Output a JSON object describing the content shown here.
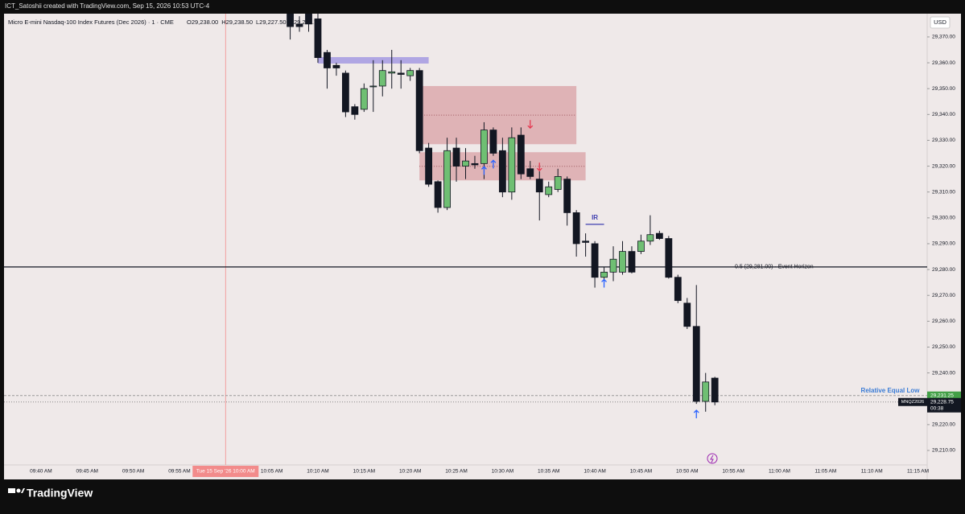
{
  "credit": "ICT_Satoshii created with TradingView.com, Sep 15, 2026 10:53 UTC-4",
  "brand": "TradingView",
  "chart_data": {
    "type": "candlestick",
    "title": "Micro E-mini Nasdaq-100 Index Futures (Dec 2026) · 1 · CME",
    "ohlc_labels": [
      "O29,238.00",
      "H29,238.50",
      "L29,227.50",
      "C29,228.75"
    ],
    "currency": "USD",
    "x": [
      "10:07 AM",
      "10:08 AM",
      "10:09 AM",
      "10:10 AM",
      "10:11 AM",
      "10:12 AM",
      "10:13 AM",
      "10:14 AM",
      "10:15 AM",
      "10:16 AM",
      "10:17 AM",
      "10:18 AM",
      "10:19 AM",
      "10:20 AM",
      "10:21 AM",
      "10:22 AM",
      "10:23 AM",
      "10:24 AM",
      "10:25 AM",
      "10:26 AM",
      "10:27 AM",
      "10:28 AM",
      "10:29 AM",
      "10:30 AM",
      "10:31 AM",
      "10:32 AM",
      "10:33 AM",
      "10:34 AM",
      "10:35 AM",
      "10:36 AM",
      "10:37 AM",
      "10:38 AM",
      "10:39 AM",
      "10:40 AM",
      "10:41 AM",
      "10:42 AM",
      "10:43 AM",
      "10:44 AM",
      "10:45 AM",
      "10:46 AM",
      "10:47 AM",
      "10:48 AM",
      "10:49 AM",
      "10:50 AM",
      "10:51 AM",
      "10:52 AM",
      "10:53 AM"
    ],
    "open": [
      29379,
      29375,
      29380,
      29377,
      29364,
      29359,
      29356,
      29343,
      29342,
      29351,
      29351,
      29356,
      29356,
      29355,
      29357,
      29327,
      29314,
      29304,
      29327,
      29320,
      29321,
      29321,
      29334,
      29326,
      29310,
      29332,
      29319,
      29315,
      29309,
      29311,
      29315,
      29302,
      29291,
      29290,
      29277,
      29279,
      29279,
      29287,
      29287,
      29291,
      29294,
      29292,
      29277,
      29267,
      29258,
      29229,
      29238
    ],
    "high": [
      29380,
      29378,
      29381,
      29379,
      29365,
      29360,
      29357,
      29344,
      29352,
      29361,
      29361,
      29365,
      29361,
      29358,
      29358,
      29329,
      29314.5,
      29331,
      29331,
      29327,
      29324,
      29337,
      29335,
      29331,
      29335,
      29335,
      29322,
      29318,
      29314,
      29319,
      29316,
      29303,
      29294,
      29291,
      29281,
      29289,
      29291,
      29289,
      29293.5,
      29301,
      29295,
      29293,
      29278,
      29269,
      29274,
      29240,
      29238.5
    ],
    "low": [
      29369,
      29372,
      29372,
      29360,
      29350,
      29355,
      29339,
      29338,
      29341,
      29341,
      29347,
      29350,
      29350,
      29353,
      29325,
      29312,
      29302,
      29303,
      29314,
      29315,
      29319,
      29315,
      29324,
      29308,
      29307,
      29315,
      29315,
      29299,
      29308,
      29310,
      29297,
      29285,
      29285,
      29273,
      29275.5,
      29275.5,
      29278,
      29278.5,
      29286,
      29289.5,
      29291.5,
      29276.5,
      29267,
      29257,
      29228,
      29225,
      29227.5
    ],
    "close": [
      29374,
      29374,
      29375,
      29362,
      29358,
      29358,
      29341,
      29340,
      29350,
      29351,
      29357,
      29356.5,
      29355.5,
      29357,
      29326,
      29313,
      29304,
      29326,
      29320,
      29322,
      29320.5,
      29334,
      29325,
      29310,
      29331,
      29317,
      29316,
      29310,
      29312,
      29316,
      29302,
      29290,
      29290.5,
      29277,
      29279,
      29284,
      29287,
      29279,
      29291,
      29293.5,
      29292,
      29277,
      29268,
      29258,
      29229,
      29236.5,
      29228.75
    ],
    "up_color": "#6fbf73",
    "down_color": "#131722",
    "xlim": [
      "09:36 AM",
      "11:16 AM"
    ],
    "xticks": [
      "09:40 AM",
      "09:45 AM",
      "09:50 AM",
      "09:55 AM",
      "10:05 AM",
      "10:10 AM",
      "10:15 AM",
      "10:20 AM",
      "10:25 AM",
      "10:30 AM",
      "10:35 AM",
      "10:40 AM",
      "10:45 AM",
      "10:50 AM",
      "10:55 AM",
      "11:00 AM",
      "11:05 AM",
      "11:10 AM",
      "11:15 AM"
    ],
    "ylim": [
      29204.4,
      29379
    ],
    "yticks": [
      {
        "value": 29210,
        "label": "29,210.00"
      },
      {
        "value": 29220,
        "label": "29,220.00"
      },
      {
        "value": 29230,
        "label": "29,230.00"
      },
      {
        "value": 29240,
        "label": "29,240.00"
      },
      {
        "value": 29250,
        "label": "29,250.00"
      },
      {
        "value": 29260,
        "label": "29,260.00"
      },
      {
        "value": 29270,
        "label": "29,270.00"
      },
      {
        "value": 29280,
        "label": "29,280.00"
      },
      {
        "value": 29290,
        "label": "29,290.00"
      },
      {
        "value": 29300,
        "label": "29,300.00"
      },
      {
        "value": 29310,
        "label": "29,310.00"
      },
      {
        "value": 29320,
        "label": "29,320.00"
      },
      {
        "value": 29330,
        "label": "29,330.00"
      },
      {
        "value": 29340,
        "label": "29,340.00"
      },
      {
        "value": 29350,
        "label": "29,350.00"
      },
      {
        "value": 29360,
        "label": "29,360.00"
      },
      {
        "value": 29370,
        "label": "29,370.00"
      }
    ],
    "grid": false,
    "zones": [
      {
        "x": [
          "10:10 AM",
          "10:22 AM"
        ],
        "y": [
          29359.7,
          29362.2
        ],
        "color": "#9b8fe0"
      },
      {
        "x": [
          "10:21 AM",
          "10:38 AM"
        ],
        "y": [
          29328.5,
          29351
        ],
        "color": "#d9a0a4"
      },
      {
        "x": [
          "10:21 AM",
          "10:39 AM"
        ],
        "y": [
          29314.5,
          29325.4
        ],
        "color": "#d9a0a4"
      }
    ],
    "hline": {
      "value": 29281,
      "label": "0.5 (29,281.00) · Event Horizon"
    },
    "equal_low": {
      "value": 29231.25,
      "label": "Relative Equal Low",
      "price_label": "29,231.25",
      "color": "#3a7bd5"
    },
    "last_price": {
      "value": 29228.75,
      "label": "29,228.75",
      "symbol": "MNQZ2026",
      "countdown": "00:38"
    },
    "ir": {
      "label": "IR",
      "x": [
        "10:39 AM",
        "10:41 AM"
      ],
      "y": 29297.5
    },
    "arrows": [
      {
        "x": "10:28 AM",
        "y": 29318.2,
        "dir": "up"
      },
      {
        "x": "10:29 AM",
        "y": 29320.7,
        "dir": "up"
      },
      {
        "x": "10:41 AM",
        "y": 29274.6,
        "dir": "up"
      },
      {
        "x": "10:51 AM",
        "y": 29224,
        "dir": "up"
      },
      {
        "x": "10:33 AM",
        "y": 29336.3,
        "dir": "down"
      },
      {
        "x": "10:34 AM",
        "y": 29319.8,
        "dir": "down"
      }
    ],
    "crosshair": {
      "x": "10:00 AM",
      "label": "Tue 15 Sep '26   10:00 AM"
    }
  }
}
